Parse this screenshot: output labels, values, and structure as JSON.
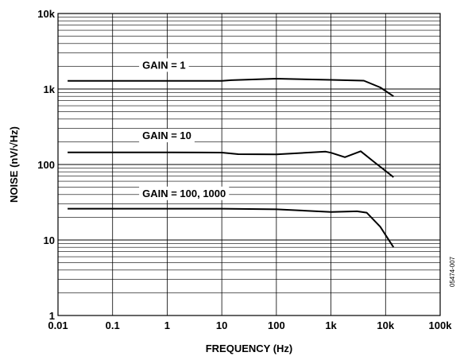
{
  "chart_data": {
    "type": "line",
    "xlabel": "FREQUENCY (Hz)",
    "ylabel": "NOISE (nV/√Hz)",
    "xscale": "log",
    "yscale": "log",
    "xlim": [
      0.01,
      100000
    ],
    "ylim": [
      1,
      10000
    ],
    "xticks": [
      {
        "value": 0.01,
        "label": "0.01"
      },
      {
        "value": 0.1,
        "label": "0.1"
      },
      {
        "value": 1,
        "label": "1"
      },
      {
        "value": 10,
        "label": "10"
      },
      {
        "value": 100,
        "label": "100"
      },
      {
        "value": 1000,
        "label": "1k"
      },
      {
        "value": 10000,
        "label": "10k"
      },
      {
        "value": 100000,
        "label": "100k"
      }
    ],
    "yticks": [
      {
        "value": 1,
        "label": "1"
      },
      {
        "value": 10,
        "label": "10"
      },
      {
        "value": 100,
        "label": "100"
      },
      {
        "value": 1000,
        "label": "1k"
      },
      {
        "value": 10000,
        "label": "10k"
      }
    ],
    "grid": true,
    "annotations": [
      {
        "text": "GAIN = 1",
        "x": 0.35,
        "y": 2100,
        "series": 0
      },
      {
        "text": "GAIN = 10",
        "x": 0.35,
        "y": 245,
        "series": 1
      },
      {
        "text": "GAIN = 100, 1000",
        "x": 0.35,
        "y": 42,
        "series": 2
      }
    ],
    "series": [
      {
        "x": [
          0.015,
          0.1,
          1,
          10,
          15,
          100,
          1000,
          4000,
          8000,
          14000
        ],
        "y": [
          1280,
          1280,
          1280,
          1280,
          1310,
          1370,
          1320,
          1290,
          1050,
          800
        ]
      },
      {
        "x": [
          0.015,
          0.1,
          1,
          10,
          20,
          100,
          800,
          1000,
          1800,
          3500,
          6000,
          14000
        ],
        "y": [
          145,
          145,
          145,
          144,
          137,
          136,
          148,
          143,
          125,
          150,
          110,
          68
        ]
      },
      {
        "x": [
          0.015,
          0.1,
          1,
          10,
          100,
          1000,
          3000,
          4500,
          8000,
          14000
        ],
        "y": [
          26,
          26,
          26,
          26,
          25.5,
          23.5,
          24,
          23,
          15,
          8
        ]
      }
    ],
    "figure_id": "05474-007"
  }
}
